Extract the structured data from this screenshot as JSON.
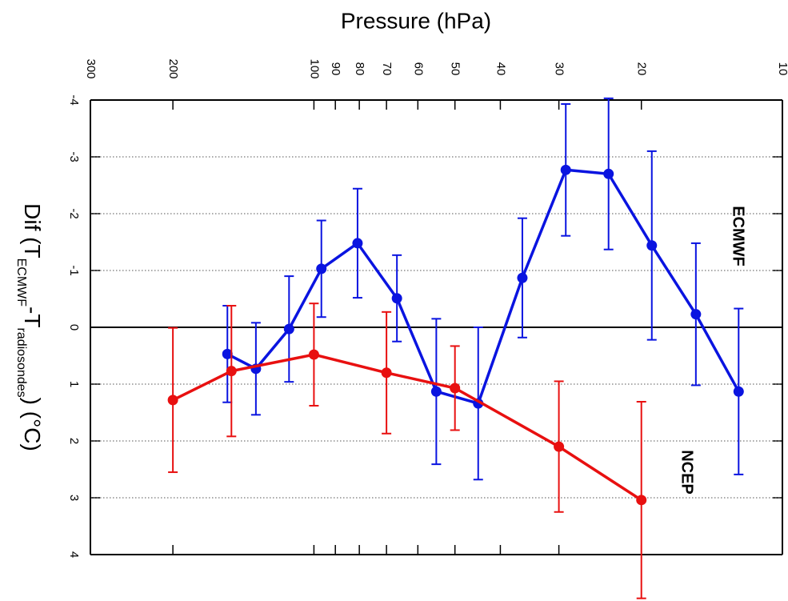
{
  "chart_data": {
    "type": "line",
    "xlabel": "Pressure (hPa)",
    "ylabel": {
      "prefix": "Dif (T",
      "sub1": "ECMWF",
      "mid": "-T",
      "sub2": "radiosondes",
      "suffix": ") (°C)"
    },
    "xscale": "log",
    "xlim": [
      300,
      10
    ],
    "xticks": [
      300,
      200,
      100,
      90,
      80,
      70,
      60,
      50,
      40,
      30,
      20,
      10
    ],
    "ylim": [
      -4,
      4
    ],
    "yticks": [
      -4,
      -3,
      -2,
      -1,
      0,
      1,
      2,
      3,
      4
    ],
    "grid": true,
    "series": [
      {
        "name": "ECMWF",
        "color": "#0a14e0",
        "x": [
          153,
          133,
          113,
          96.4,
          80.7,
          66.5,
          54.8,
          44.6,
          35.9,
          29.0,
          23.5,
          19.0,
          15.3,
          12.4
        ],
        "values": [
          0.47,
          0.73,
          0.03,
          -1.03,
          -1.48,
          -0.51,
          1.13,
          1.34,
          -0.87,
          -2.77,
          -2.7,
          -1.44,
          -0.23,
          1.13
        ],
        "errors": [
          0.85,
          0.81,
          0.93,
          0.85,
          0.96,
          0.76,
          1.28,
          1.34,
          1.05,
          1.16,
          1.33,
          1.66,
          1.25,
          1.46
        ]
      },
      {
        "name": "NCEP",
        "color": "#e81010",
        "x": [
          200,
          150,
          100,
          70,
          50,
          30,
          20
        ],
        "values": [
          1.28,
          0.77,
          0.48,
          0.8,
          1.07,
          2.1,
          3.04
        ],
        "errors": [
          1.27,
          1.15,
          0.9,
          1.07,
          0.74,
          1.15,
          1.73
        ]
      }
    ]
  }
}
